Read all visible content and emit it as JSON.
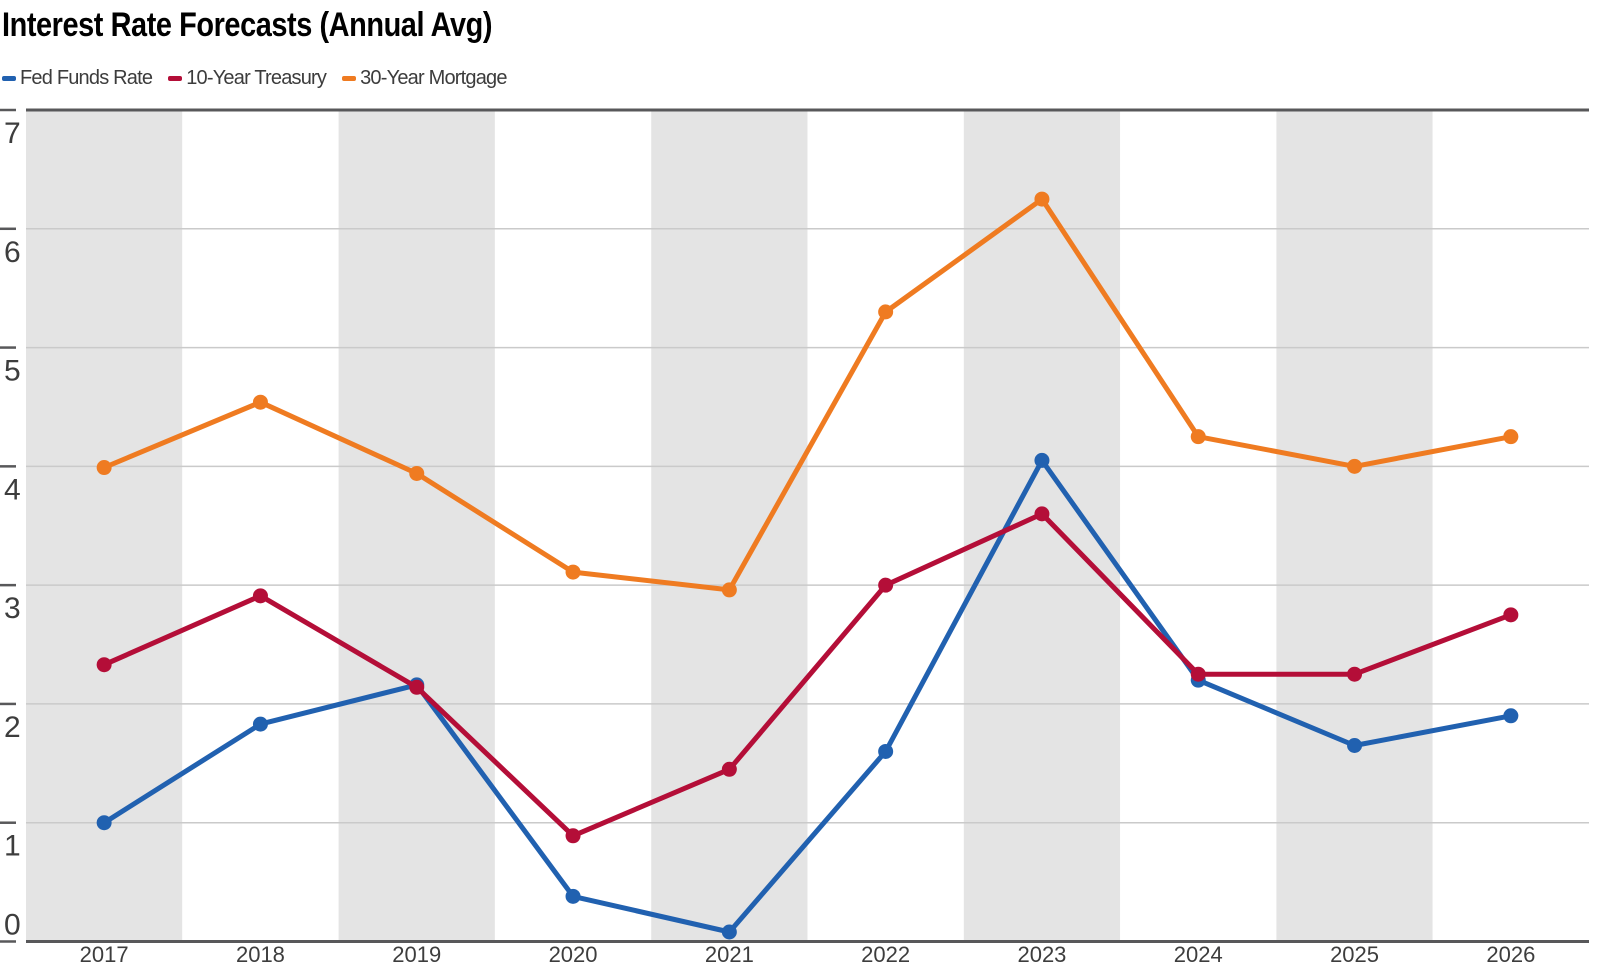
{
  "title": "Interest Rate Forecasts (Annual Avg)",
  "legend": {
    "items": [
      {
        "label": "Fed Funds Rate",
        "color": "#2161b0"
      },
      {
        "label": "10-Year Treasury",
        "color": "#b40e38"
      },
      {
        "label": "30-Year Mortgage",
        "color": "#ef7b21"
      }
    ]
  },
  "chart_data": {
    "type": "line",
    "title": "Interest Rate Forecasts (Annual Avg)",
    "categories": [
      "2017",
      "2018",
      "2019",
      "2020",
      "2021",
      "2022",
      "2023",
      "2024",
      "2025",
      "2026"
    ],
    "series": [
      {
        "name": "Fed Funds Rate",
        "color": "#2161b0",
        "values": [
          1.0,
          1.83,
          2.16,
          0.38,
          0.08,
          1.6,
          4.05,
          2.2,
          1.65,
          1.9
        ]
      },
      {
        "name": "10-Year Treasury",
        "color": "#b40e38",
        "values": [
          2.33,
          2.91,
          2.14,
          0.89,
          1.45,
          3.0,
          3.6,
          2.25,
          2.25,
          2.75
        ]
      },
      {
        "name": "30-Year Mortgage",
        "color": "#ef7b21",
        "values": [
          3.99,
          4.54,
          3.94,
          3.11,
          2.96,
          5.3,
          6.25,
          4.25,
          4.0,
          4.25
        ]
      }
    ],
    "xlabel": "",
    "ylabel": "",
    "ylim": [
      0,
      7
    ],
    "yticks": [
      0,
      1,
      2,
      3,
      4,
      5,
      6,
      7
    ],
    "grid": true,
    "legend_position": "top-left",
    "band_fill_odd": "#e4e4e4",
    "band_fill_even": "#ffffff",
    "axis_color": "#58585a",
    "gridline_color": "#cacaca",
    "tick_label_color": "#3d3d3d"
  }
}
